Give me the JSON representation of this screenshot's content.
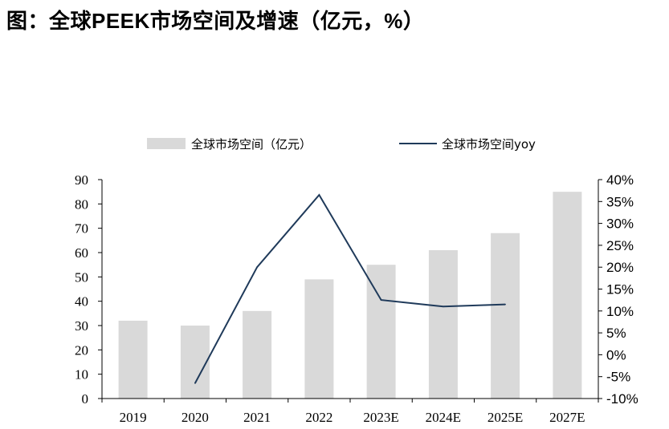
{
  "title": "图：全球PEEK市场空间及增速（亿元，%）",
  "colors": {
    "bar": "#d9d9d9",
    "line": "#1f3a5a",
    "axis": "#000000"
  },
  "chart_data": {
    "type": "bar",
    "categories": [
      "2019",
      "2020",
      "2021",
      "2022",
      "2023E",
      "2024E",
      "2025E",
      "2027E"
    ],
    "series": [
      {
        "name": "全球市场空间（亿元）",
        "type": "bar",
        "axis": "left",
        "values": [
          32,
          30,
          36,
          49,
          55,
          61,
          68,
          85
        ]
      },
      {
        "name": "全球市场空间yoy",
        "type": "line",
        "axis": "right",
        "values": [
          null,
          -6.5,
          20,
          36.5,
          12.5,
          11,
          11.5,
          null
        ]
      }
    ],
    "ylim_left": [
      0,
      90
    ],
    "yticks_left": [
      "0",
      "10",
      "20",
      "30",
      "40",
      "50",
      "60",
      "70",
      "80",
      "90"
    ],
    "ylim_right": [
      -10,
      40
    ],
    "yticks_right": [
      "-10%",
      "-5%",
      "0%",
      "5%",
      "10%",
      "15%",
      "20%",
      "25%",
      "30%",
      "35%",
      "40%"
    ],
    "legend": "top",
    "grid": false
  }
}
